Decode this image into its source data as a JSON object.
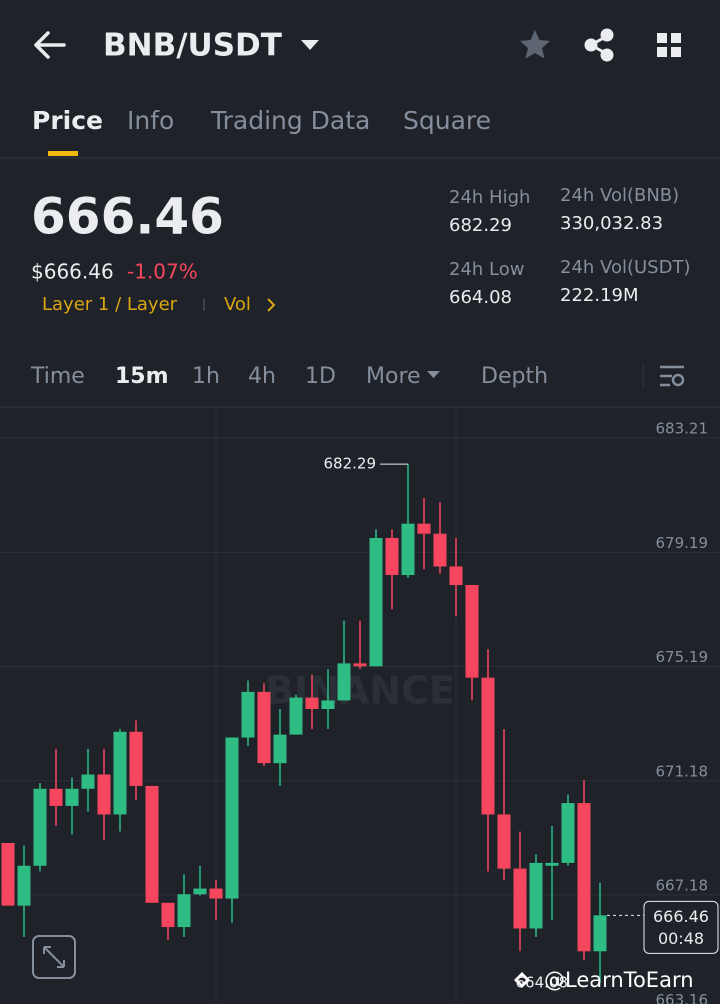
{
  "header": {
    "pair": "BNB/USDT"
  },
  "tabs": [
    "Price",
    "Info",
    "Trading Data",
    "Square"
  ],
  "ticker": {
    "price": "666.46",
    "price_usd": "$666.46",
    "change": "-1.07%",
    "tags": "Layer 1 / Layer",
    "vol_link": "Vol",
    "stats": [
      {
        "label": "24h High",
        "value": "682.29"
      },
      {
        "label": "24h Vol(BNB)",
        "value": "330,032.83"
      },
      {
        "label": "24h Low",
        "value": "664.08"
      },
      {
        "label": "24h Vol(USDT)",
        "value": "222.19M"
      }
    ]
  },
  "intervals": [
    "Time",
    "15m",
    "1h",
    "4h",
    "1D",
    "More",
    "Depth"
  ],
  "chart_data": {
    "type": "candlestick",
    "watermark": "BINANCE",
    "countdown": "00:48",
    "up_color": "#2ebd85",
    "down_color": "#f6465d",
    "grid": true,
    "ylim": [
      663.35,
      684.26
    ],
    "yticks": [
      683.21,
      679.19,
      675.19,
      671.18,
      667.18,
      663.16
    ],
    "open": [
      669.0,
      666.8,
      668.2,
      670.9,
      670.3,
      670.9,
      671.4,
      670.0,
      672.9,
      671.0,
      666.9,
      666.05,
      667.2,
      667.4,
      667.05,
      672.7,
      674.3,
      671.8,
      672.8,
      674.1,
      673.7,
      674.0,
      675.3,
      675.2,
      679.7,
      678.4,
      680.2,
      679.85,
      678.7,
      678.05,
      674.8,
      670.0,
      668.1,
      666.0,
      668.2,
      668.3,
      670.4,
      665.2
    ],
    "high": [
      669.0,
      668.9,
      671.1,
      672.3,
      671.3,
      672.3,
      672.3,
      673.0,
      673.3,
      671.0,
      666.9,
      667.9,
      668.2,
      667.7,
      672.7,
      674.7,
      674.6,
      673.7,
      674.2,
      674.9,
      675.1,
      676.8,
      676.8,
      680.0,
      680.0,
      682.29,
      681.1,
      680.95,
      679.7,
      678.05,
      675.8,
      673.0,
      669.4,
      668.6,
      669.6,
      670.7,
      671.2,
      667.6
    ],
    "low": [
      666.8,
      665.7,
      668.0,
      669.6,
      669.3,
      670.1,
      669.1,
      669.4,
      670.5,
      666.9,
      665.6,
      665.7,
      667.15,
      666.3,
      666.2,
      672.4,
      671.7,
      671.0,
      672.8,
      673.0,
      673.0,
      674.0,
      675.1,
      675.2,
      677.2,
      678.3,
      678.6,
      678.45,
      676.95,
      674.0,
      668.0,
      667.7,
      665.2,
      665.7,
      666.3,
      668.2,
      664.9,
      664.08
    ],
    "close": [
      666.8,
      668.2,
      670.9,
      670.3,
      670.9,
      671.4,
      670.0,
      672.9,
      671.0,
      666.9,
      666.05,
      667.2,
      667.4,
      667.05,
      672.7,
      674.3,
      671.8,
      672.8,
      674.1,
      673.7,
      674.0,
      675.3,
      675.2,
      679.7,
      678.4,
      680.2,
      679.85,
      678.7,
      678.05,
      674.8,
      670.0,
      668.1,
      666.0,
      668.3,
      668.3,
      670.4,
      665.2,
      666.46
    ]
  },
  "overlay": {
    "watermark": "@LearnToEarn"
  }
}
